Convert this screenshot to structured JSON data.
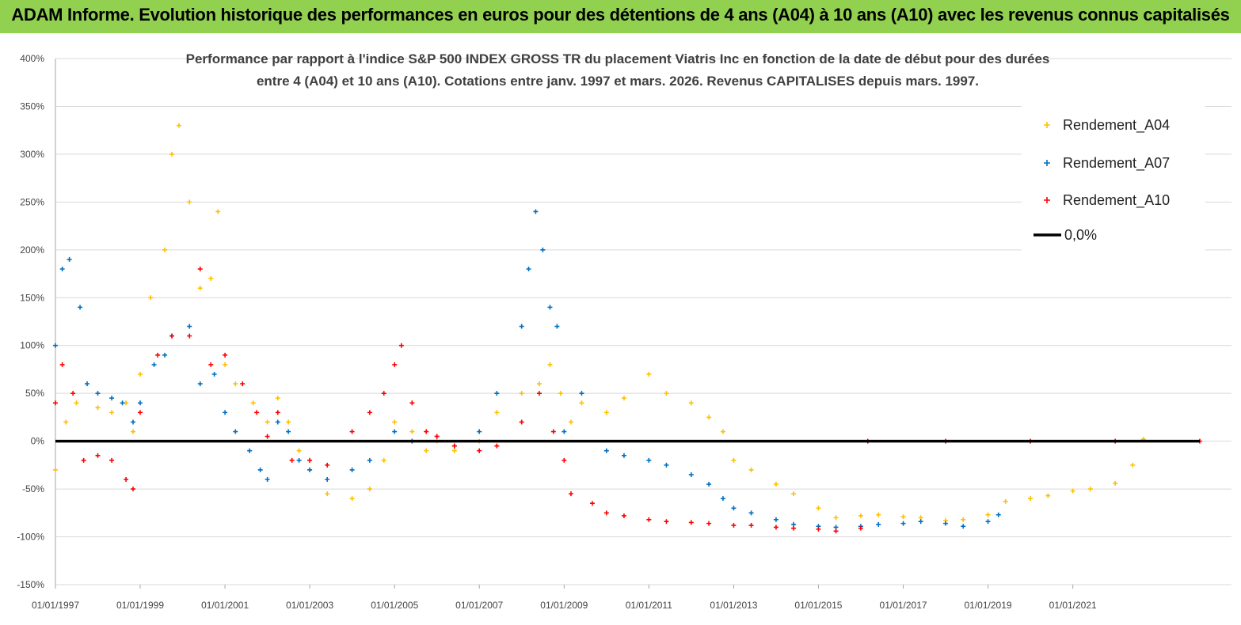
{
  "header": {
    "title": "ADAM Informe. Evolution historique des performances en euros pour des détentions de 4 ans (A04) à 10 ans (A10) avec les revenus connus capitalisés"
  },
  "chart_data": {
    "type": "scatter",
    "title_lines": [
      "Performance par rapport à l'indice S&P 500 INDEX GROSS TR  du placement Viatris Inc en fonction de la date de début pour des durées",
      "entre 4 (A04) et 10 ans (A10). Cotations entre janv. 1997 et mars. 2026. Revenus CAPITALISES depuis mars. 1997."
    ],
    "xlabel": "",
    "ylabel": "",
    "x_range": [
      "1997-01-01",
      "2023-12-31"
    ],
    "ylim": [
      -150,
      400
    ],
    "y_ticks": [
      "400%",
      "350%",
      "300%",
      "250%",
      "200%",
      "150%",
      "100%",
      "50%",
      "0%",
      "-50%",
      "-100%",
      "-150%"
    ],
    "x_ticks": [
      "01/01/1997",
      "01/01/1999",
      "01/01/2001",
      "01/01/2003",
      "01/01/2005",
      "01/01/2007",
      "01/01/2009",
      "01/01/2011",
      "01/01/2013",
      "01/01/2015",
      "01/01/2017",
      "01/01/2019",
      "01/01/2021"
    ],
    "grid": "horizontal",
    "legend_position": "top-right",
    "legend": [
      "Rendement_A04",
      "Rendement_A07",
      "Rendement_A10",
      "0,0%"
    ],
    "colors": {
      "A04": "#ffc000",
      "A07": "#0070c0",
      "A10": "#ff0000",
      "zero": "#000000"
    },
    "series": [
      {
        "name": "Rendement_A04",
        "color": "#ffc000",
        "points": [
          [
            "1997-01-01",
            -30
          ],
          [
            "1997-04-01",
            20
          ],
          [
            "1997-07-01",
            40
          ],
          [
            "1998-01-01",
            35
          ],
          [
            "1998-05-01",
            30
          ],
          [
            "1998-09-01",
            40
          ],
          [
            "1998-11-01",
            10
          ],
          [
            "1999-01-01",
            70
          ],
          [
            "1999-04-01",
            150
          ],
          [
            "1999-08-01",
            200
          ],
          [
            "1999-10-01",
            300
          ],
          [
            "1999-12-01",
            330
          ],
          [
            "2000-03-01",
            250
          ],
          [
            "2000-06-01",
            160
          ],
          [
            "2000-09-01",
            170
          ],
          [
            "2000-11-01",
            240
          ],
          [
            "2001-01-01",
            80
          ],
          [
            "2001-04-01",
            60
          ],
          [
            "2001-09-01",
            40
          ],
          [
            "2002-01-01",
            20
          ],
          [
            "2002-04-01",
            45
          ],
          [
            "2002-07-01",
            20
          ],
          [
            "2002-10-01",
            -10
          ],
          [
            "2003-01-01",
            -30
          ],
          [
            "2003-06-01",
            -55
          ],
          [
            "2004-01-01",
            -60
          ],
          [
            "2004-06-01",
            -50
          ],
          [
            "2004-10-01",
            -20
          ],
          [
            "2005-01-01",
            20
          ],
          [
            "2005-06-01",
            10
          ],
          [
            "2005-10-01",
            -10
          ],
          [
            "2006-01-01",
            0
          ],
          [
            "2006-06-01",
            -10
          ],
          [
            "2007-01-01",
            0
          ],
          [
            "2007-06-01",
            30
          ],
          [
            "2008-01-01",
            50
          ],
          [
            "2008-06-01",
            60
          ],
          [
            "2008-09-01",
            80
          ],
          [
            "2008-12-01",
            50
          ],
          [
            "2009-03-01",
            20
          ],
          [
            "2009-06-01",
            40
          ],
          [
            "2010-01-01",
            30
          ],
          [
            "2010-06-01",
            45
          ],
          [
            "2011-01-01",
            70
          ],
          [
            "2011-06-01",
            50
          ],
          [
            "2012-01-01",
            40
          ],
          [
            "2012-06-01",
            25
          ],
          [
            "2012-10-01",
            10
          ],
          [
            "2013-01-01",
            -20
          ],
          [
            "2013-06-01",
            -30
          ],
          [
            "2014-01-01",
            -45
          ],
          [
            "2014-06-01",
            -55
          ],
          [
            "2015-01-01",
            -70
          ],
          [
            "2015-06-01",
            -80
          ],
          [
            "2016-01-01",
            -78
          ],
          [
            "2016-06-01",
            -77
          ],
          [
            "2017-01-01",
            -79
          ],
          [
            "2017-06-01",
            -80
          ],
          [
            "2018-01-01",
            -83
          ],
          [
            "2018-06-01",
            -82
          ],
          [
            "2019-01-01",
            -77
          ],
          [
            "2019-06-01",
            -63
          ],
          [
            "2020-01-01",
            -60
          ],
          [
            "2020-06-01",
            -57
          ],
          [
            "2021-01-01",
            -52
          ],
          [
            "2021-06-01",
            -50
          ],
          [
            "2022-01-01",
            -44
          ],
          [
            "2022-06-01",
            -25
          ],
          [
            "2022-09-01",
            2
          ]
        ]
      },
      {
        "name": "Rendement_A07",
        "color": "#0070c0",
        "points": [
          [
            "1997-01-01",
            100
          ],
          [
            "1997-03-01",
            180
          ],
          [
            "1997-05-01",
            190
          ],
          [
            "1997-08-01",
            140
          ],
          [
            "1997-10-01",
            60
          ],
          [
            "1998-01-01",
            50
          ],
          [
            "1998-05-01",
            45
          ],
          [
            "1998-08-01",
            40
          ],
          [
            "1998-11-01",
            20
          ],
          [
            "1999-01-01",
            40
          ],
          [
            "1999-05-01",
            80
          ],
          [
            "1999-08-01",
            90
          ],
          [
            "1999-10-01",
            110
          ],
          [
            "2000-03-01",
            120
          ],
          [
            "2000-06-01",
            60
          ],
          [
            "2000-10-01",
            70
          ],
          [
            "2001-01-01",
            30
          ],
          [
            "2001-04-01",
            10
          ],
          [
            "2001-08-01",
            -10
          ],
          [
            "2001-11-01",
            -30
          ],
          [
            "2002-01-01",
            -40
          ],
          [
            "2002-04-01",
            20
          ],
          [
            "2002-07-01",
            10
          ],
          [
            "2002-10-01",
            -20
          ],
          [
            "2003-01-01",
            -30
          ],
          [
            "2003-06-01",
            -40
          ],
          [
            "2004-01-01",
            -30
          ],
          [
            "2004-06-01",
            -20
          ],
          [
            "2005-01-01",
            10
          ],
          [
            "2005-06-01",
            0
          ],
          [
            "2006-01-01",
            5
          ],
          [
            "2006-06-01",
            -5
          ],
          [
            "2007-01-01",
            10
          ],
          [
            "2007-06-01",
            50
          ],
          [
            "2008-01-01",
            120
          ],
          [
            "2008-03-01",
            180
          ],
          [
            "2008-05-01",
            240
          ],
          [
            "2008-07-01",
            200
          ],
          [
            "2008-09-01",
            140
          ],
          [
            "2008-11-01",
            120
          ],
          [
            "2009-01-01",
            10
          ],
          [
            "2009-06-01",
            50
          ],
          [
            "2010-01-01",
            -10
          ],
          [
            "2010-06-01",
            -15
          ],
          [
            "2011-01-01",
            -20
          ],
          [
            "2011-06-01",
            -25
          ],
          [
            "2012-01-01",
            -35
          ],
          [
            "2012-06-01",
            -45
          ],
          [
            "2012-10-01",
            -60
          ],
          [
            "2013-01-01",
            -70
          ],
          [
            "2013-06-01",
            -75
          ],
          [
            "2014-01-01",
            -82
          ],
          [
            "2014-06-01",
            -87
          ],
          [
            "2015-01-01",
            -89
          ],
          [
            "2015-06-01",
            -90
          ],
          [
            "2016-01-01",
            -89
          ],
          [
            "2016-06-01",
            -87
          ],
          [
            "2017-01-01",
            -86
          ],
          [
            "2017-06-01",
            -84
          ],
          [
            "2018-01-01",
            -86
          ],
          [
            "2018-06-01",
            -89
          ],
          [
            "2019-01-01",
            -84
          ],
          [
            "2019-04-01",
            -77
          ]
        ]
      },
      {
        "name": "Rendement_A10",
        "color": "#ff0000",
        "points": [
          [
            "1997-01-01",
            40
          ],
          [
            "1997-03-01",
            80
          ],
          [
            "1997-06-01",
            50
          ],
          [
            "1997-09-01",
            -20
          ],
          [
            "1998-01-01",
            -15
          ],
          [
            "1998-05-01",
            -20
          ],
          [
            "1998-09-01",
            -40
          ],
          [
            "1998-11-01",
            -50
          ],
          [
            "1999-01-01",
            30
          ],
          [
            "1999-06-01",
            90
          ],
          [
            "1999-10-01",
            110
          ],
          [
            "2000-03-01",
            110
          ],
          [
            "2000-06-01",
            180
          ],
          [
            "2000-09-01",
            80
          ],
          [
            "2001-01-01",
            90
          ],
          [
            "2001-06-01",
            60
          ],
          [
            "2001-10-01",
            30
          ],
          [
            "2002-01-01",
            5
          ],
          [
            "2002-04-01",
            30
          ],
          [
            "2002-08-01",
            -20
          ],
          [
            "2003-01-01",
            -20
          ],
          [
            "2003-06-01",
            -25
          ],
          [
            "2004-01-01",
            10
          ],
          [
            "2004-06-01",
            30
          ],
          [
            "2004-10-01",
            50
          ],
          [
            "2005-01-01",
            80
          ],
          [
            "2005-03-01",
            100
          ],
          [
            "2005-06-01",
            40
          ],
          [
            "2005-10-01",
            10
          ],
          [
            "2006-01-01",
            5
          ],
          [
            "2006-06-01",
            -5
          ],
          [
            "2007-01-01",
            -10
          ],
          [
            "2007-06-01",
            -5
          ],
          [
            "2008-01-01",
            20
          ],
          [
            "2008-06-01",
            50
          ],
          [
            "2008-10-01",
            10
          ],
          [
            "2009-01-01",
            -20
          ],
          [
            "2009-03-01",
            -55
          ],
          [
            "2009-09-01",
            -65
          ],
          [
            "2010-01-01",
            -75
          ],
          [
            "2010-06-01",
            -78
          ],
          [
            "2011-01-01",
            -82
          ],
          [
            "2011-06-01",
            -84
          ],
          [
            "2012-01-01",
            -85
          ],
          [
            "2012-06-01",
            -86
          ],
          [
            "2013-01-01",
            -88
          ],
          [
            "2013-06-01",
            -88
          ],
          [
            "2014-01-01",
            -90
          ],
          [
            "2014-06-01",
            -91
          ],
          [
            "2015-01-01",
            -92
          ],
          [
            "2015-06-01",
            -94
          ],
          [
            "2016-01-01",
            -91
          ],
          [
            "2016-03-01",
            0
          ],
          [
            "2018-01-01",
            0
          ],
          [
            "2020-01-01",
            0
          ],
          [
            "2022-01-01",
            0
          ],
          [
            "2023-12-31",
            0
          ]
        ]
      }
    ]
  }
}
